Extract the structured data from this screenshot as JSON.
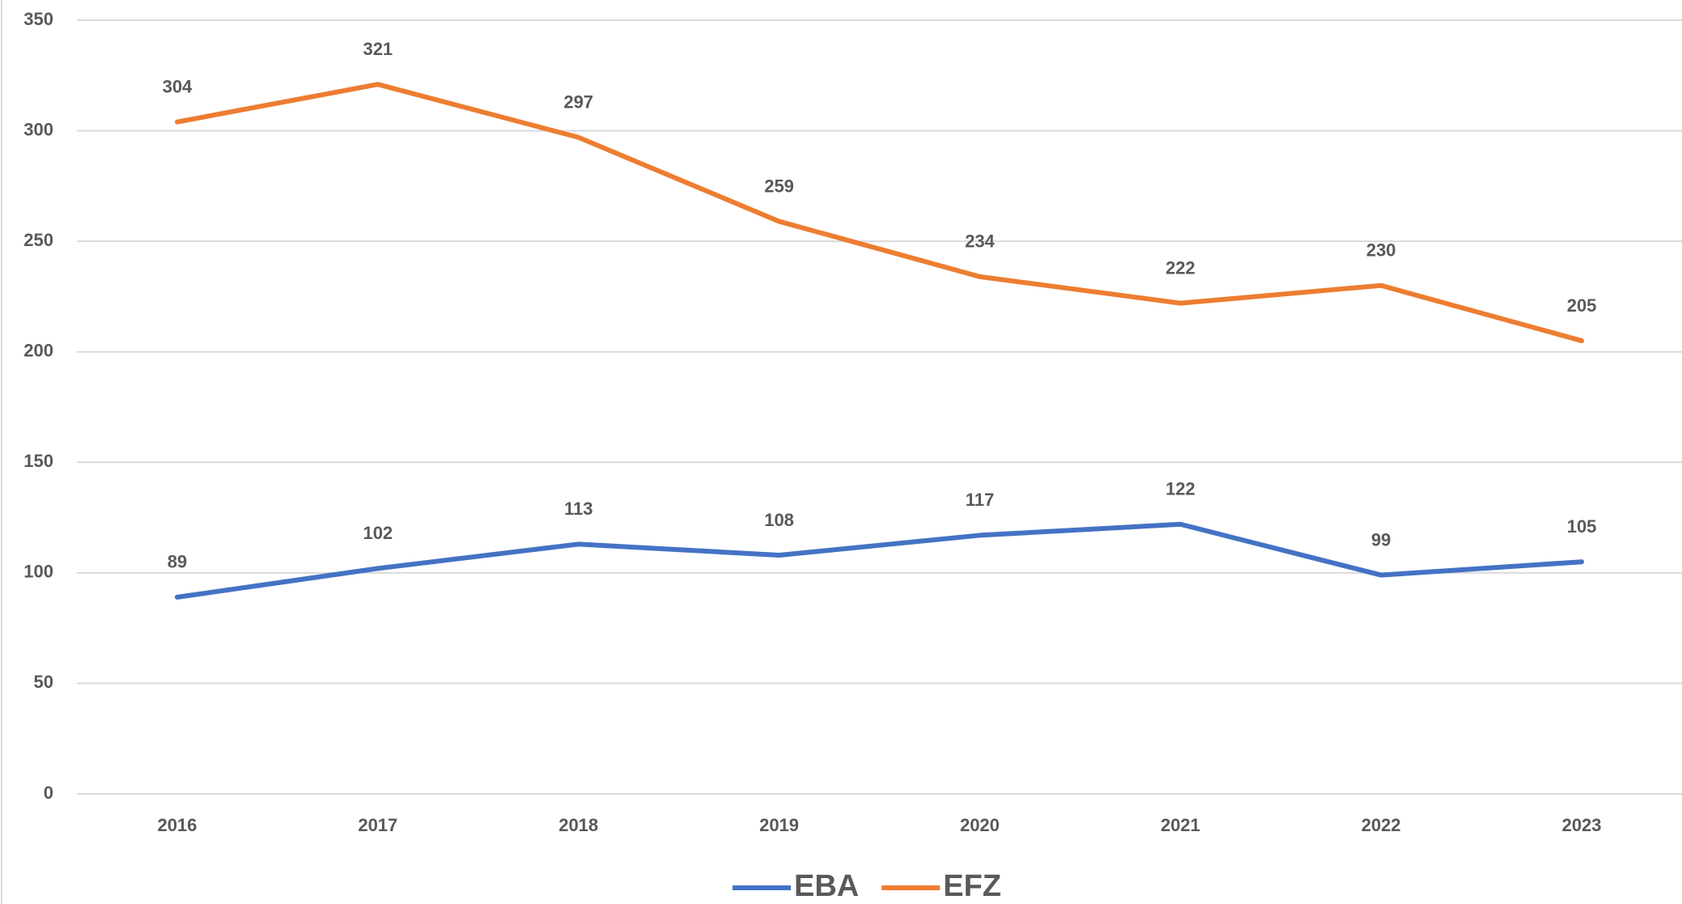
{
  "chart_data": {
    "type": "line",
    "categories": [
      "2016",
      "2017",
      "2018",
      "2019",
      "2020",
      "2021",
      "2022",
      "2023"
    ],
    "series": [
      {
        "name": "EBA",
        "color": "#4472c4",
        "values": [
          89,
          102,
          113,
          108,
          117,
          122,
          99,
          105
        ]
      },
      {
        "name": "EFZ",
        "color": "#ed7d31",
        "values": [
          304,
          321,
          297,
          259,
          234,
          222,
          230,
          205
        ]
      }
    ],
    "ylim": [
      0,
      350
    ],
    "yticks": [
      0,
      50,
      100,
      150,
      200,
      250,
      300,
      350
    ],
    "grid": true,
    "legend": "bottom"
  }
}
